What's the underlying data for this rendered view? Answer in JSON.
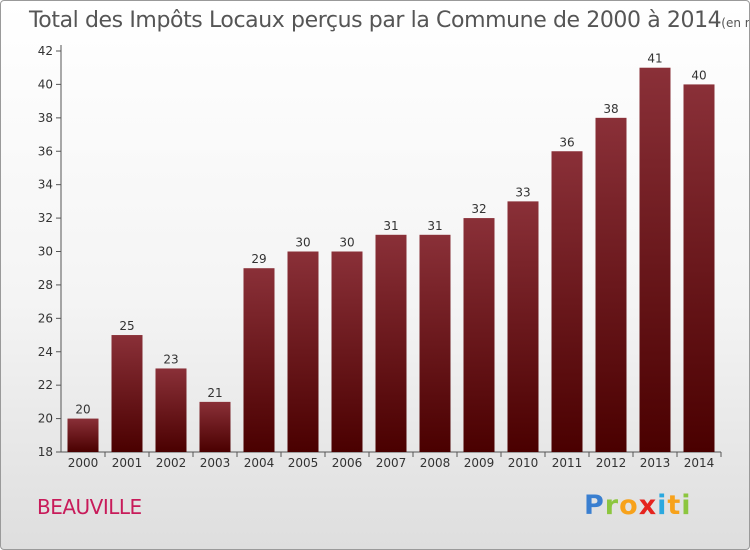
{
  "chart_data": {
    "type": "bar",
    "title": "Total des Impôts Locaux perçus par la Commune de 2000 à 2014",
    "unit_note": "(en milliers d'€)",
    "categories": [
      "2000",
      "2001",
      "2002",
      "2003",
      "2004",
      "2005",
      "2006",
      "2007",
      "2008",
      "2009",
      "2010",
      "2011",
      "2012",
      "2013",
      "2014"
    ],
    "values": [
      20,
      25,
      23,
      21,
      29,
      30,
      30,
      31,
      31,
      32,
      33,
      36,
      38,
      41,
      40
    ],
    "ylim": [
      18,
      42
    ],
    "yticks": [
      18,
      20,
      22,
      24,
      26,
      28,
      30,
      32,
      34,
      36,
      38,
      40,
      42
    ],
    "xlabel": "",
    "ylabel": "",
    "grid": false,
    "colors": {
      "bar_top": "#8a3038",
      "bar_bottom": "#4a0000",
      "axis": "#555555"
    }
  },
  "footer": {
    "commune": "BEAUVILLE",
    "logo_letters": [
      {
        "ch": "P",
        "color": "#3a7fd0"
      },
      {
        "ch": "r",
        "color": "#8cc63f"
      },
      {
        "ch": "o",
        "color": "#f7a21b"
      },
      {
        "ch": "x",
        "color": "#e5241f"
      },
      {
        "ch": "i",
        "color": "#2ba8df"
      },
      {
        "ch": "t",
        "color": "#f7a21b"
      },
      {
        "ch": "i",
        "color": "#8cc63f"
      }
    ]
  }
}
